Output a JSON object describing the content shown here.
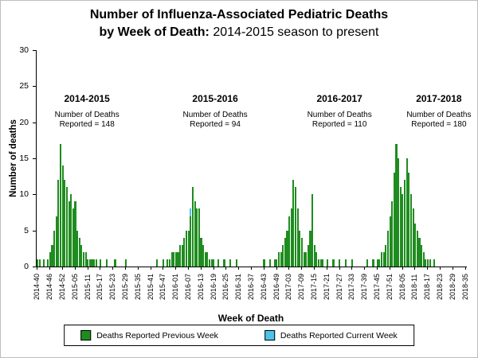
{
  "title": {
    "line1": "Number of Influenza-Associated Pediatric Deaths",
    "line2_bold": "by Week of Death:",
    "line2_normal": "2014-2015 season to present"
  },
  "chart_data": {
    "type": "bar",
    "title": "Number of Influenza-Associated Pediatric Deaths by Week of Death: 2014-2015 season to present",
    "xlabel": "Week of Death",
    "ylabel": "Number of deaths",
    "ylim": [
      0,
      30
    ],
    "yticks": [
      0,
      5,
      10,
      15,
      20,
      25,
      30
    ],
    "grid": false,
    "legend_position": "bottom",
    "x_tick_every": 6,
    "weeks_per_year": {
      "2014": [
        40,
        53
      ],
      "2015": [
        1,
        52
      ],
      "2016": [
        1,
        52
      ],
      "2017": [
        1,
        52
      ],
      "2018": [
        1,
        35
      ]
    },
    "x_tick_labels": [
      "2014-40",
      "2014-46",
      "2014-52",
      "2015-05",
      "2015-11",
      "2015-17",
      "2015-23",
      "2015-29",
      "2015-35",
      "2015-41",
      "2015-47",
      "2016-01",
      "2016-07",
      "2016-13",
      "2016-19",
      "2016-25",
      "2016-31",
      "2016-37",
      "2016-43",
      "2016-49",
      "2017-03",
      "2017-09",
      "2017-15",
      "2017-21",
      "2017-27",
      "2017-33",
      "2017-39",
      "2017-45",
      "2017-51",
      "2018-05",
      "2018-11",
      "2018-17",
      "2018-23",
      "2018-29",
      "2018-35"
    ],
    "series": [
      {
        "name": "Deaths Reported Previous Week",
        "color": "#1f8c1f",
        "values": [
          1,
          1,
          0,
          1,
          0,
          1,
          2,
          3,
          5,
          7,
          12,
          17,
          14,
          12,
          11,
          9,
          10,
          8,
          9,
          5,
          4,
          3,
          2,
          2,
          1,
          1,
          1,
          1,
          1,
          0,
          1,
          0,
          0,
          1,
          0,
          0,
          0,
          1,
          0,
          0,
          0,
          0,
          1,
          0,
          0,
          0,
          0,
          0,
          0,
          0,
          0,
          0,
          0,
          0,
          0,
          0,
          0,
          1,
          0,
          0,
          1,
          0,
          1,
          1,
          2,
          2,
          2,
          2,
          3,
          3,
          4,
          5,
          5,
          7,
          11,
          9,
          8,
          8,
          4,
          3,
          2,
          2,
          1,
          1,
          1,
          0,
          1,
          0,
          0,
          1,
          0,
          0,
          1,
          0,
          0,
          1,
          0,
          0,
          0,
          0,
          0,
          0,
          0,
          0,
          0,
          0,
          0,
          0,
          1,
          0,
          0,
          1,
          0,
          1,
          1,
          2,
          2,
          3,
          4,
          5,
          7,
          8,
          12,
          11,
          8,
          5,
          4,
          2,
          2,
          3,
          5,
          10,
          3,
          2,
          1,
          1,
          1,
          0,
          1,
          0,
          0,
          1,
          0,
          0,
          1,
          0,
          0,
          1,
          0,
          0,
          1,
          0,
          0,
          0,
          0,
          0,
          0,
          1,
          0,
          0,
          1,
          0,
          1,
          1,
          2,
          2,
          3,
          5,
          7,
          9,
          13,
          17,
          15,
          11,
          10,
          12,
          15,
          13,
          10,
          8,
          6,
          5,
          4,
          3,
          2,
          1,
          1,
          1,
          0,
          1,
          0,
          0,
          0,
          0,
          0,
          0,
          0,
          0,
          0,
          0,
          0,
          0,
          0,
          0,
          0
        ]
      },
      {
        "name": "Deaths Reported Current Week",
        "color": "#4dc3eb",
        "stacked_on_previous": true,
        "sparse_values": {
          "2016-08": 1
        }
      }
    ],
    "season_annotations": [
      {
        "season": "2014-2015",
        "line1": "Number of Deaths",
        "line2": "Reported = 148",
        "x_percent": 11.7
      },
      {
        "season": "2015-2016",
        "line1": "Number of Deaths",
        "line2": "Reported = 94",
        "x_percent": 41.5
      },
      {
        "season": "2016-2017",
        "line1": "Number of Deaths",
        "line2": "Reported = 110",
        "x_percent": 70.4
      },
      {
        "season": "2017-2018",
        "line1": "Number of Deaths",
        "line2": "Reported = 180",
        "x_percent": 93.5
      }
    ]
  }
}
